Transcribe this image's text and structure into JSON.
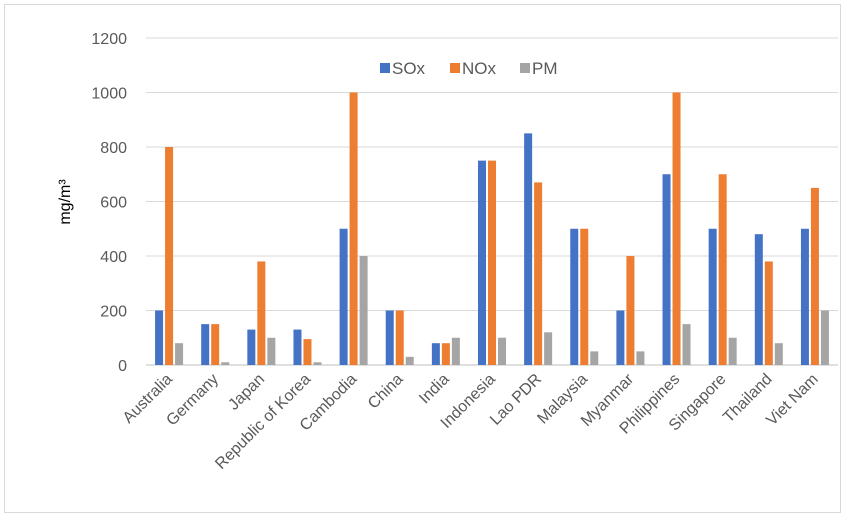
{
  "chart_data": {
    "type": "bar",
    "title": "",
    "xlabel": "",
    "ylabel": "mg/m³",
    "ylim": [
      0,
      1200
    ],
    "yticks": [
      0,
      200,
      400,
      600,
      800,
      1000,
      1200
    ],
    "grid": true,
    "legend_position": "top",
    "categories": [
      "Australia",
      "Germany",
      "Japan",
      "Republic of Korea",
      "Cambodia",
      "China",
      "India",
      "Indonesia",
      "Lao PDR",
      "Malaysia",
      "Myanmar",
      "Philippines",
      "Singapore",
      "Thailand",
      "Viet Nam"
    ],
    "series": [
      {
        "name": "SOx",
        "color": "#4472c4",
        "values": [
          200,
          150,
          130,
          130,
          500,
          200,
          80,
          750,
          850,
          500,
          200,
          700,
          500,
          480,
          500
        ]
      },
      {
        "name": "NOx",
        "color": "#ed7d31",
        "values": [
          800,
          150,
          380,
          95,
          1000,
          200,
          80,
          750,
          670,
          500,
          400,
          1000,
          700,
          380,
          650
        ]
      },
      {
        "name": "PM",
        "color": "#a5a5a5",
        "values": [
          80,
          10,
          100,
          10,
          400,
          30,
          100,
          100,
          120,
          50,
          50,
          150,
          100,
          80,
          200
        ]
      }
    ]
  }
}
